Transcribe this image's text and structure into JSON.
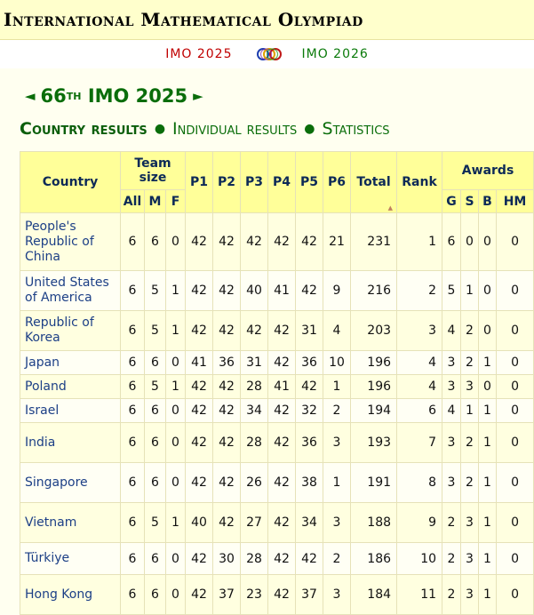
{
  "site": {
    "title": "International Mathematical Olympiad"
  },
  "nav": {
    "prev": "IMO 2025",
    "next": "IMO 2026",
    "logo_icon": "imo-rings-logo"
  },
  "edition": {
    "left_arrow": "◄",
    "number": "66",
    "suffix": "TH",
    "name": "IMO 2025",
    "right_arrow": "►"
  },
  "subnav": {
    "items": [
      "Country results",
      "Individual results",
      "Statistics"
    ],
    "separator": "●"
  },
  "table": {
    "headers": {
      "country": "Country",
      "team_size": "Team size",
      "all": "All",
      "m": "M",
      "f": "F",
      "p1": "P1",
      "p2": "P2",
      "p3": "P3",
      "p4": "P4",
      "p5": "P5",
      "p6": "P6",
      "total": "Total",
      "rank": "Rank",
      "awards": "Awards",
      "g": "G",
      "s": "S",
      "b": "B",
      "hm": "HM"
    },
    "rows": [
      {
        "country": "People's Republic of China",
        "all": "6",
        "m": "6",
        "f": "0",
        "p1": "42",
        "p2": "42",
        "p3": "42",
        "p4": "42",
        "p5": "42",
        "p6": "21",
        "total": "231",
        "rank": "1",
        "g": "6",
        "s": "0",
        "b": "0",
        "hm": "0"
      },
      {
        "country": "United States of America",
        "all": "6",
        "m": "5",
        "f": "1",
        "p1": "42",
        "p2": "42",
        "p3": "40",
        "p4": "41",
        "p5": "42",
        "p6": "9",
        "total": "216",
        "rank": "2",
        "g": "5",
        "s": "1",
        "b": "0",
        "hm": "0"
      },
      {
        "country": "Republic of Korea",
        "all": "6",
        "m": "5",
        "f": "1",
        "p1": "42",
        "p2": "42",
        "p3": "42",
        "p4": "42",
        "p5": "31",
        "p6": "4",
        "total": "203",
        "rank": "3",
        "g": "4",
        "s": "2",
        "b": "0",
        "hm": "0"
      },
      {
        "country": "Japan",
        "all": "6",
        "m": "6",
        "f": "0",
        "p1": "41",
        "p2": "36",
        "p3": "31",
        "p4": "42",
        "p5": "36",
        "p6": "10",
        "total": "196",
        "rank": "4",
        "g": "3",
        "s": "2",
        "b": "1",
        "hm": "0"
      },
      {
        "country": "Poland",
        "all": "6",
        "m": "5",
        "f": "1",
        "p1": "42",
        "p2": "42",
        "p3": "28",
        "p4": "41",
        "p5": "42",
        "p6": "1",
        "total": "196",
        "rank": "4",
        "g": "3",
        "s": "3",
        "b": "0",
        "hm": "0"
      },
      {
        "country": "Israel",
        "all": "6",
        "m": "6",
        "f": "0",
        "p1": "42",
        "p2": "42",
        "p3": "34",
        "p4": "42",
        "p5": "32",
        "p6": "2",
        "total": "194",
        "rank": "6",
        "g": "4",
        "s": "1",
        "b": "1",
        "hm": "0"
      },
      {
        "country": "India",
        "all": "6",
        "m": "6",
        "f": "0",
        "p1": "42",
        "p2": "42",
        "p3": "28",
        "p4": "42",
        "p5": "36",
        "p6": "3",
        "total": "193",
        "rank": "7",
        "g": "3",
        "s": "2",
        "b": "1",
        "hm": "0"
      },
      {
        "country": "Singapore",
        "all": "6",
        "m": "6",
        "f": "0",
        "p1": "42",
        "p2": "42",
        "p3": "26",
        "p4": "42",
        "p5": "38",
        "p6": "1",
        "total": "191",
        "rank": "8",
        "g": "3",
        "s": "2",
        "b": "1",
        "hm": "0"
      },
      {
        "country": "Vietnam",
        "all": "6",
        "m": "5",
        "f": "1",
        "p1": "40",
        "p2": "42",
        "p3": "27",
        "p4": "42",
        "p5": "34",
        "p6": "3",
        "total": "188",
        "rank": "9",
        "g": "2",
        "s": "3",
        "b": "1",
        "hm": "0"
      },
      {
        "country": "Türkiye",
        "all": "6",
        "m": "6",
        "f": "0",
        "p1": "42",
        "p2": "30",
        "p3": "28",
        "p4": "42",
        "p5": "42",
        "p6": "2",
        "total": "186",
        "rank": "10",
        "g": "2",
        "s": "3",
        "b": "1",
        "hm": "0"
      },
      {
        "country": "Hong Kong",
        "all": "6",
        "m": "6",
        "f": "0",
        "p1": "42",
        "p2": "37",
        "p3": "23",
        "p4": "42",
        "p5": "37",
        "p6": "3",
        "total": "184",
        "rank": "11",
        "g": "2",
        "s": "3",
        "b": "1",
        "hm": "0"
      }
    ]
  }
}
